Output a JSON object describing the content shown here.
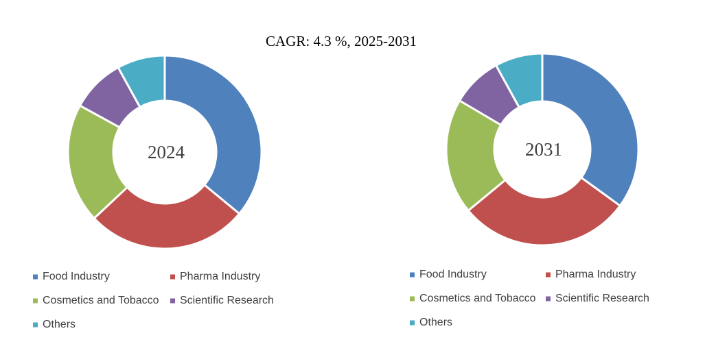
{
  "chart_data": [
    {
      "type": "donut",
      "title": "CAGR:   4.3 %, 2025-2031",
      "center_label": "2024",
      "categories": [
        "Food Industry",
        "Pharma Industry",
        "Cosmetics and Tobacco",
        "Scientific Research",
        "Others"
      ],
      "values": [
        36,
        27,
        20,
        9,
        8
      ],
      "colors": [
        "#4f81bd",
        "#c0504d",
        "#9bbb59",
        "#8064a2",
        "#4bacc6"
      ]
    },
    {
      "type": "donut",
      "center_label": "2031",
      "categories": [
        "Food Industry",
        "Pharma Industry",
        "Cosmetics and Tobacco",
        "Scientific Research",
        "Others"
      ],
      "values": [
        35,
        29,
        19.5,
        8.5,
        8
      ],
      "colors": [
        "#4f81bd",
        "#c0504d",
        "#9bbb59",
        "#8064a2",
        "#4bacc6"
      ]
    }
  ]
}
